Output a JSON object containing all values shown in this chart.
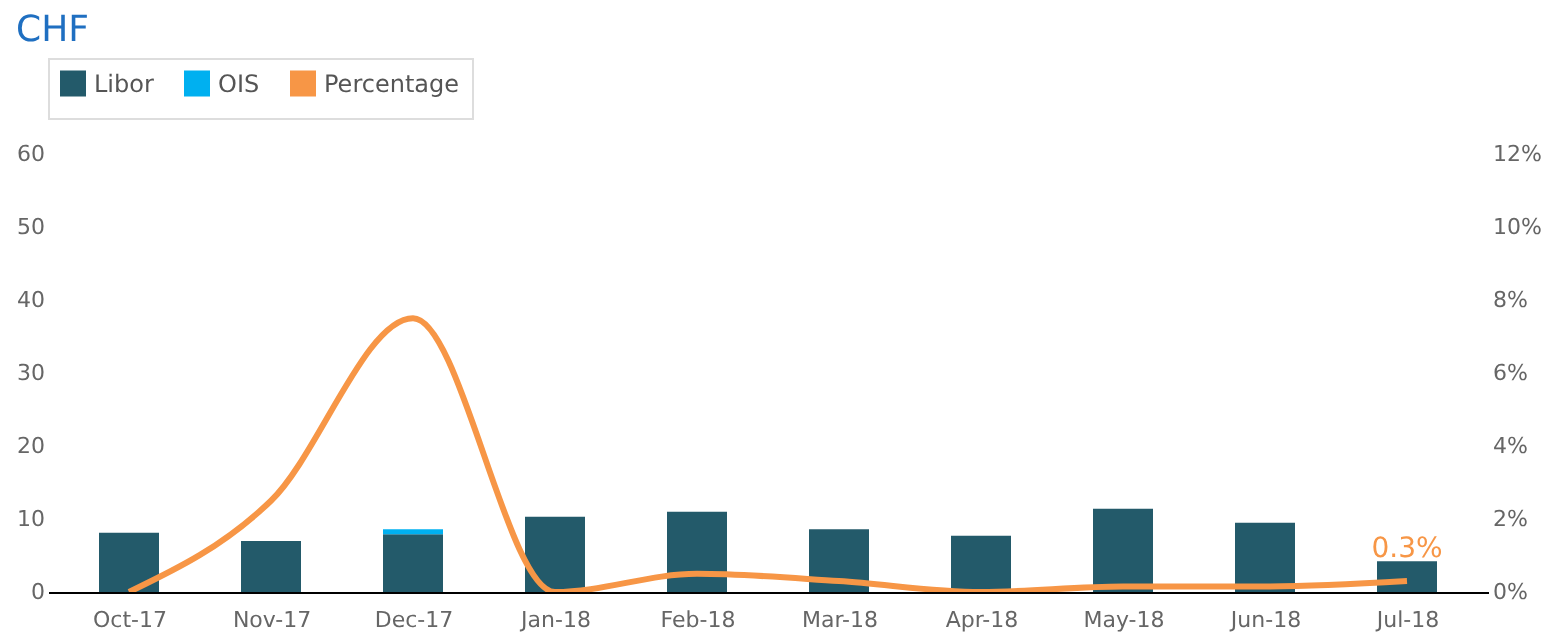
{
  "chart_data": {
    "type": "bar",
    "title": "CHF",
    "stacked": true,
    "legend": "top",
    "grid": false,
    "categories": [
      "Oct-17",
      "Nov-17",
      "Dec-17",
      "Jan-18",
      "Feb-18",
      "Mar-18",
      "Apr-18",
      "May-18",
      "Jun-18",
      "Jul-18"
    ],
    "series": [
      {
        "name": "Libor",
        "color": "#235a6a",
        "values": [
          8.1,
          7.0,
          7.9,
          10.3,
          11.0,
          8.6,
          7.7,
          11.4,
          9.5,
          4.2
        ]
      },
      {
        "name": "OIS",
        "color": "#00b0f0",
        "values": [
          0,
          0,
          0.7,
          0,
          0,
          0,
          0,
          0,
          0,
          0
        ]
      },
      {
        "name": "Percentage",
        "type": "line",
        "axis": "y2",
        "color": "#f79646",
        "values": [
          0,
          2.5,
          7.5,
          0,
          0.5,
          0.3,
          0,
          0.15,
          0.15,
          0.3
        ],
        "value_labels": [
          null,
          null,
          null,
          null,
          null,
          null,
          null,
          null,
          null,
          "0.3%"
        ]
      }
    ],
    "ylim": [
      0,
      60
    ],
    "yticks": [
      0,
      10,
      20,
      30,
      40,
      50,
      60
    ],
    "y2lim": [
      0,
      12
    ],
    "y2ticks": [
      {
        "value": 0,
        "label": "0%"
      },
      {
        "value": 2,
        "label": "2%"
      },
      {
        "value": 4,
        "label": "4%"
      },
      {
        "value": 6,
        "label": "6%"
      },
      {
        "value": 8,
        "label": "8%"
      },
      {
        "value": 10,
        "label": "10%"
      },
      {
        "value": 12,
        "label": "12%"
      }
    ]
  }
}
